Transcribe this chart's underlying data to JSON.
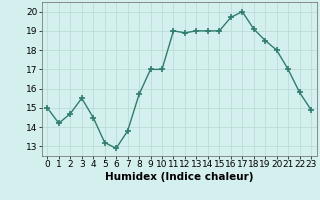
{
  "x": [
    0,
    1,
    2,
    3,
    4,
    5,
    6,
    7,
    8,
    9,
    10,
    11,
    12,
    13,
    14,
    15,
    16,
    17,
    18,
    19,
    20,
    21,
    22,
    23
  ],
  "y": [
    15.0,
    14.2,
    14.7,
    15.5,
    14.5,
    13.2,
    12.9,
    13.8,
    15.7,
    17.0,
    17.0,
    19.0,
    18.9,
    19.0,
    19.0,
    19.0,
    19.7,
    20.0,
    19.1,
    18.5,
    18.0,
    17.0,
    15.8,
    14.9
  ],
  "line_color": "#2e7d6e",
  "marker": "+",
  "marker_size": 4,
  "bg_color": "#d4f0ee",
  "grid_color": "#b8d8d4",
  "xlabel": "Humidex (Indice chaleur)",
  "xlim": [
    -0.5,
    23.5
  ],
  "ylim": [
    12.5,
    20.5
  ],
  "yticks": [
    13,
    14,
    15,
    16,
    17,
    18,
    19,
    20
  ],
  "xticks": [
    0,
    1,
    2,
    3,
    4,
    5,
    6,
    7,
    8,
    9,
    10,
    11,
    12,
    13,
    14,
    15,
    16,
    17,
    18,
    19,
    20,
    21,
    22,
    23
  ],
  "line_width": 1.0,
  "xlabel_fontsize": 7.5,
  "tick_fontsize": 6.5,
  "marker_color": "#2e7d6e"
}
